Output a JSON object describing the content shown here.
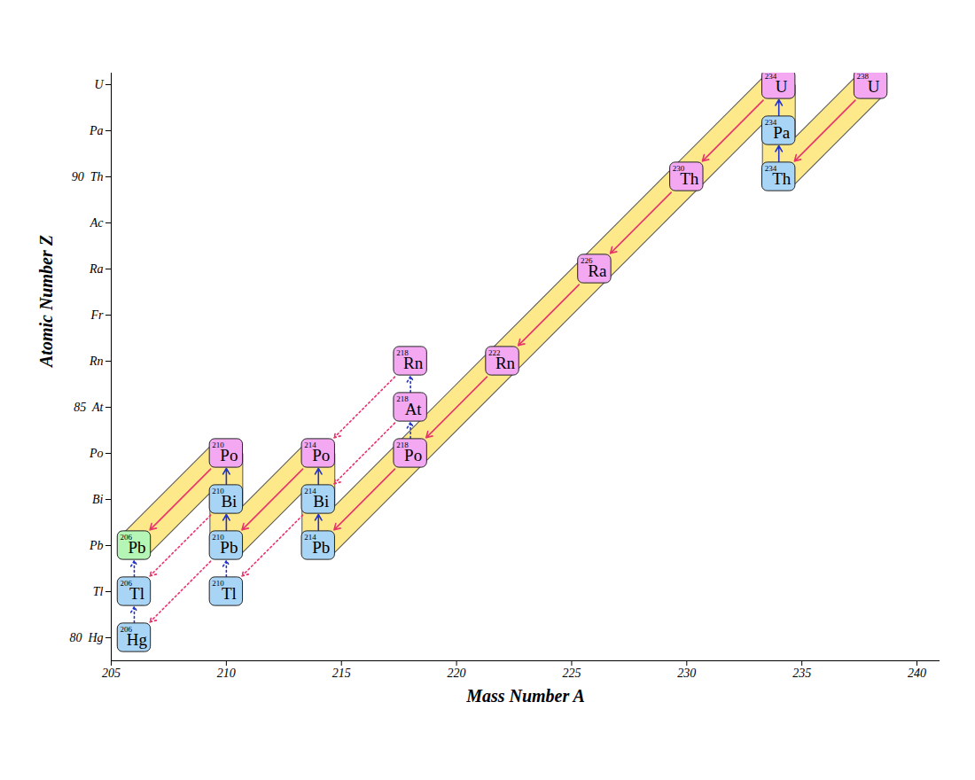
{
  "chart_data": {
    "type": "decay_chain",
    "x_label": "Mass Number A",
    "y_label": "Atomic Number Z",
    "xlim": [
      205,
      241
    ],
    "xticks": [
      205,
      210,
      215,
      220,
      225,
      230,
      235,
      240
    ],
    "ylim": [
      79.5,
      92.25
    ],
    "yticks": [
      {
        "value": 80,
        "label": "80  Hg"
      },
      {
        "value": 81,
        "label": "Tl"
      },
      {
        "value": 82,
        "label": "Pb"
      },
      {
        "value": 83,
        "label": "Bi"
      },
      {
        "value": 84,
        "label": "Po"
      },
      {
        "value": 85,
        "label": "85  At"
      },
      {
        "value": 86,
        "label": "Rn"
      },
      {
        "value": 87,
        "label": "Fr"
      },
      {
        "value": 88,
        "label": "Ra"
      },
      {
        "value": 89,
        "label": "Ac"
      },
      {
        "value": 90,
        "label": "90  Th"
      },
      {
        "value": 91,
        "label": "Pa"
      },
      {
        "value": 92,
        "label": "U"
      }
    ],
    "nuclides": [
      {
        "a": 238,
        "z": 92,
        "symbol": "U",
        "color": "#f5a8f2"
      },
      {
        "a": 234,
        "z": 90,
        "symbol": "Th",
        "color": "#a8d5f5"
      },
      {
        "a": 234,
        "z": 91,
        "symbol": "Pa",
        "color": "#a8d5f5"
      },
      {
        "a": 234,
        "z": 92,
        "symbol": "U",
        "color": "#f5a8f2"
      },
      {
        "a": 230,
        "z": 90,
        "symbol": "Th",
        "color": "#f5a8f2"
      },
      {
        "a": 226,
        "z": 88,
        "symbol": "Ra",
        "color": "#f5a8f2"
      },
      {
        "a": 222,
        "z": 86,
        "symbol": "Rn",
        "color": "#f5a8f2"
      },
      {
        "a": 218,
        "z": 84,
        "symbol": "Po",
        "color": "#f5a8f2"
      },
      {
        "a": 218,
        "z": 85,
        "symbol": "At",
        "color": "#f5a8f2"
      },
      {
        "a": 218,
        "z": 86,
        "symbol": "Rn",
        "color": "#f5a8f2"
      },
      {
        "a": 214,
        "z": 82,
        "symbol": "Pb",
        "color": "#a8d5f5"
      },
      {
        "a": 214,
        "z": 83,
        "symbol": "Bi",
        "color": "#a8d5f5"
      },
      {
        "a": 214,
        "z": 84,
        "symbol": "Po",
        "color": "#f5a8f2"
      },
      {
        "a": 210,
        "z": 81,
        "symbol": "Tl",
        "color": "#a8d5f5"
      },
      {
        "a": 210,
        "z": 82,
        "symbol": "Pb",
        "color": "#a8d5f5"
      },
      {
        "a": 210,
        "z": 83,
        "symbol": "Bi",
        "color": "#a8d5f5"
      },
      {
        "a": 210,
        "z": 84,
        "symbol": "Po",
        "color": "#f5a8f2"
      },
      {
        "a": 206,
        "z": 80,
        "symbol": "Hg",
        "color": "#a8d5f5"
      },
      {
        "a": 206,
        "z": 81,
        "symbol": "Tl",
        "color": "#a8d5f5"
      },
      {
        "a": 206,
        "z": 82,
        "symbol": "Pb",
        "color": "#b5f5b5"
      }
    ],
    "decays": [
      {
        "from": [
          238,
          92
        ],
        "to": [
          234,
          90
        ],
        "color": "#e8336b",
        "line_style": "solid"
      },
      {
        "from": [
          234,
          92
        ],
        "to": [
          230,
          90
        ],
        "color": "#e8336b",
        "line_style": "solid"
      },
      {
        "from": [
          230,
          90
        ],
        "to": [
          226,
          88
        ],
        "color": "#e8336b",
        "line_style": "solid"
      },
      {
        "from": [
          226,
          88
        ],
        "to": [
          222,
          86
        ],
        "color": "#e8336b",
        "line_style": "solid"
      },
      {
        "from": [
          222,
          86
        ],
        "to": [
          218,
          84
        ],
        "color": "#e8336b",
        "line_style": "solid"
      },
      {
        "from": [
          218,
          84
        ],
        "to": [
          214,
          82
        ],
        "color": "#e8336b",
        "line_style": "solid"
      },
      {
        "from": [
          214,
          84
        ],
        "to": [
          210,
          82
        ],
        "color": "#e8336b",
        "line_style": "solid"
      },
      {
        "from": [
          210,
          84
        ],
        "to": [
          206,
          82
        ],
        "color": "#e8336b",
        "line_style": "solid"
      },
      {
        "from": [
          234,
          90
        ],
        "to": [
          234,
          91
        ],
        "color": "#2233cc",
        "line_style": "solid"
      },
      {
        "from": [
          234,
          91
        ],
        "to": [
          234,
          92
        ],
        "color": "#2233cc",
        "line_style": "solid"
      },
      {
        "from": [
          214,
          82
        ],
        "to": [
          214,
          83
        ],
        "color": "#2233cc",
        "line_style": "solid"
      },
      {
        "from": [
          214,
          83
        ],
        "to": [
          214,
          84
        ],
        "color": "#2233cc",
        "line_style": "solid"
      },
      {
        "from": [
          210,
          82
        ],
        "to": [
          210,
          83
        ],
        "color": "#2233cc",
        "line_style": "solid"
      },
      {
        "from": [
          210,
          83
        ],
        "to": [
          210,
          84
        ],
        "color": "#2233cc",
        "line_style": "solid"
      },
      {
        "from": [
          218,
          84
        ],
        "to": [
          218,
          85
        ],
        "color": "#2233cc",
        "line_style": "dotted"
      },
      {
        "from": [
          218,
          85
        ],
        "to": [
          218,
          86
        ],
        "color": "#2233cc",
        "line_style": "dotted"
      },
      {
        "from": [
          210,
          81
        ],
        "to": [
          210,
          82
        ],
        "color": "#2233cc",
        "line_style": "dotted"
      },
      {
        "from": [
          206,
          80
        ],
        "to": [
          206,
          81
        ],
        "color": "#2233cc",
        "line_style": "dotted"
      },
      {
        "from": [
          206,
          81
        ],
        "to": [
          206,
          82
        ],
        "color": "#2233cc",
        "line_style": "dotted"
      },
      {
        "from": [
          218,
          86
        ],
        "to": [
          214,
          84
        ],
        "color": "#e8336b",
        "line_style": "dotted"
      },
      {
        "from": [
          218,
          85
        ],
        "to": [
          214,
          83
        ],
        "color": "#e8336b",
        "line_style": "dotted"
      },
      {
        "from": [
          214,
          83
        ],
        "to": [
          210,
          81
        ],
        "color": "#e8336b",
        "line_style": "dotted"
      },
      {
        "from": [
          210,
          83
        ],
        "to": [
          206,
          81
        ],
        "color": "#e8336b",
        "line_style": "dotted"
      },
      {
        "from": [
          210,
          82
        ],
        "to": [
          206,
          80
        ],
        "color": "#e8336b",
        "line_style": "dotted"
      }
    ]
  }
}
